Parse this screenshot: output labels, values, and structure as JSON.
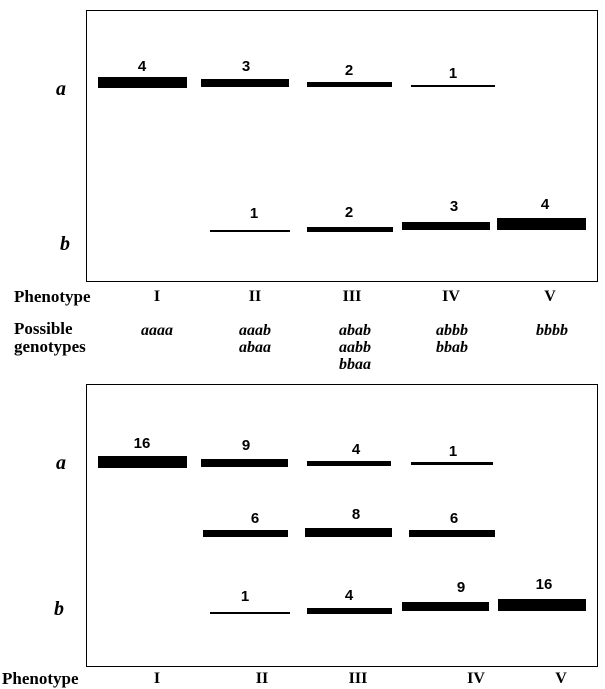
{
  "top_panel": {
    "row_a_label": "a",
    "row_b_label": "b",
    "row_a": [
      {
        "phenotype": "I",
        "count": "4",
        "weight": 4
      },
      {
        "phenotype": "II",
        "count": "3",
        "weight": 3
      },
      {
        "phenotype": "III",
        "count": "2",
        "weight": 2
      },
      {
        "phenotype": "IV",
        "count": "1",
        "weight": 1
      }
    ],
    "row_b": [
      {
        "phenotype": "II",
        "count": "1",
        "weight": 1
      },
      {
        "phenotype": "III",
        "count": "2",
        "weight": 2
      },
      {
        "phenotype": "IV",
        "count": "3",
        "weight": 3
      },
      {
        "phenotype": "V",
        "count": "4",
        "weight": 4
      }
    ]
  },
  "phenotype_row_1": {
    "label": "Phenotype",
    "values": [
      "I",
      "II",
      "III",
      "IV",
      "V"
    ]
  },
  "genotypes": {
    "label_line1": "Possible",
    "label_line2": "genotypes",
    "I": [
      "aaaa"
    ],
    "II": [
      "aaab",
      "abaa"
    ],
    "III": [
      "abab",
      "aabb",
      "bbaa"
    ],
    "IV": [
      "abbb",
      "bbab"
    ],
    "V": [
      "bbbb"
    ]
  },
  "bottom_panel": {
    "row_a_label": "a",
    "row_b_label": "b",
    "row_a": [
      {
        "phenotype": "I",
        "count": "16",
        "weight": 4
      },
      {
        "phenotype": "II",
        "count": "9",
        "weight": 3
      },
      {
        "phenotype": "III",
        "count": "4",
        "weight": 2
      },
      {
        "phenotype": "IV",
        "count": "1",
        "weight": 1
      }
    ],
    "row_ab": [
      {
        "phenotype": "II",
        "count": "6",
        "weight": 2.5
      },
      {
        "phenotype": "III",
        "count": "8",
        "weight": 3
      },
      {
        "phenotype": "IV",
        "count": "6",
        "weight": 2.5
      }
    ],
    "row_b": [
      {
        "phenotype": "II",
        "count": "1",
        "weight": 1
      },
      {
        "phenotype": "III",
        "count": "4",
        "weight": 2
      },
      {
        "phenotype": "IV",
        "count": "9",
        "weight": 3
      },
      {
        "phenotype": "V",
        "count": "16",
        "weight": 4
      }
    ]
  },
  "phenotype_row_2": {
    "label": "Phenotype",
    "values": [
      "I",
      "II",
      "III",
      "IV",
      "V"
    ]
  }
}
